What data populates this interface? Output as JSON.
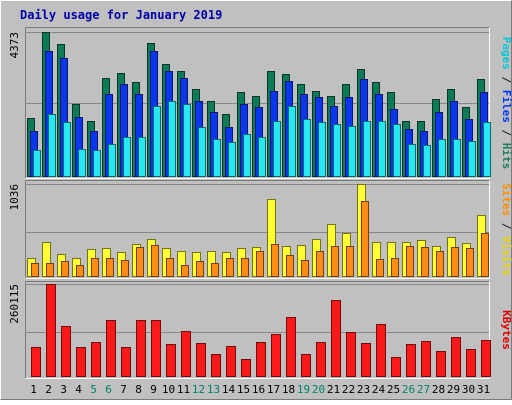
{
  "chart_data": {
    "type": "bar",
    "title": "Daily usage for January 2019",
    "days": [
      "1",
      "2",
      "3",
      "4",
      "5",
      "6",
      "7",
      "8",
      "9",
      "10",
      "11",
      "12",
      "13",
      "14",
      "15",
      "16",
      "17",
      "18",
      "19",
      "20",
      "21",
      "22",
      "23",
      "24",
      "25",
      "26",
      "27",
      "28",
      "29",
      "30",
      "31"
    ],
    "weekend_days": [
      "5",
      "6",
      "12",
      "13",
      "19",
      "20",
      "26",
      "27"
    ],
    "panels": [
      {
        "id": "pages_files_hits",
        "ymax": 4373,
        "ymax_label": "4373",
        "ylabel_parts": [
          {
            "text": "Pages",
            "color": "#00c8d8"
          },
          {
            "text": " / ",
            "color": "#1a1a1a"
          },
          {
            "text": "Files",
            "color": "#0033ff"
          },
          {
            "text": " / ",
            "color": "#1a1a1a"
          },
          {
            "text": "Hits",
            "color": "#1f8060"
          }
        ],
        "series": [
          {
            "name": "Hits",
            "color": "#0e7a58",
            "values": [
              1780,
              4373,
              4000,
              2200,
              1700,
              3000,
              3150,
              2850,
              4050,
              3400,
              3200,
              2650,
              2300,
              1900,
              2550,
              2450,
              3200,
              3100,
              2800,
              2600,
              2450,
              2800,
              3250,
              2850,
              2550,
              1700,
              1700,
              2350,
              2650,
              2100,
              2950
            ]
          },
          {
            "name": "Files",
            "color": "#0a36f0",
            "values": [
              1400,
              3800,
              3600,
              1800,
              1400,
              2500,
              2800,
              2500,
              3800,
              3200,
              3000,
              2300,
              1950,
              1500,
              2200,
              2100,
              2600,
              2900,
              2500,
              2400,
              2150,
              2400,
              2950,
              2500,
              2050,
              1450,
              1400,
              1950,
              2300,
              1750,
              2550
            ]
          },
          {
            "name": "Pages",
            "color": "#26e8f2",
            "values": [
              800,
              1900,
              1650,
              850,
              800,
              1000,
              1200,
              1200,
              2150,
              2300,
              2200,
              1500,
              1150,
              1050,
              1300,
              1200,
              1700,
              2150,
              1750,
              1650,
              1600,
              1550,
              1700,
              1700,
              1600,
              1000,
              950,
              1150,
              1150,
              1100,
              1650
            ]
          }
        ]
      },
      {
        "id": "visits_sites",
        "ymax": 1036,
        "ymax_label": "1036",
        "ylabel_parts": [
          {
            "text": "Sites",
            "color": "#ff8c00"
          },
          {
            "text": " / ",
            "color": "#1a1a1a"
          },
          {
            "text": "Visits",
            "color": "#e8d400"
          }
        ],
        "series": [
          {
            "name": "Visits",
            "color": "#ffff33",
            "values": [
              215,
              385,
              255,
              210,
              315,
              325,
              275,
              365,
              425,
              325,
              295,
              275,
              295,
              275,
              325,
              330,
              865,
              345,
              355,
              425,
              585,
              485,
              1036,
              395,
              395,
              395,
              415,
              345,
              450,
              375,
              690
            ]
          },
          {
            "name": "Sites",
            "color": "#ff8c16",
            "values": [
              155,
              160,
              175,
              135,
              215,
              215,
              190,
              330,
              355,
              215,
              135,
              175,
              155,
              215,
              215,
              295,
              365,
              245,
              185,
              295,
              345,
              345,
              845,
              195,
              215,
              345,
              335,
              285,
              335,
              325,
              495
            ]
          }
        ]
      },
      {
        "id": "kbytes",
        "ymax": 260115,
        "ymax_label": "260115",
        "ylabel_parts": [
          {
            "text": "KBytes",
            "color": "#e00000"
          }
        ],
        "series": [
          {
            "name": "KBytes",
            "color": "#ff1a1a",
            "values": [
              85000,
              260115,
              142000,
              85000,
              99000,
              160000,
              84000,
              160000,
              160000,
              92000,
              128000,
              94000,
              63000,
              86000,
              50000,
              98000,
              120000,
              168000,
              63000,
              98000,
              215000,
              125000,
              96000,
              148000,
              57000,
              92000,
              100000,
              73000,
              111000,
              78000,
              104000
            ]
          }
        ]
      }
    ]
  }
}
